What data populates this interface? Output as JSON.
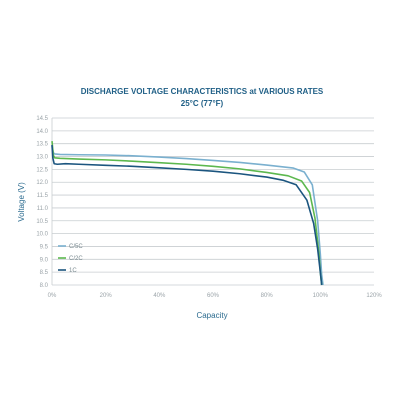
{
  "colors": {
    "title": "#1f5f86",
    "axis_label": "#2b6b8f",
    "grid": "#c8cdd0",
    "series_c5": "#7ab0cf",
    "series_c2": "#5cb84e",
    "series_1c": "#1b557f"
  },
  "chart_data": {
    "type": "line",
    "title": "DISCHARGE VOLTAGE CHARACTERISTICS at VARIOUS RATES",
    "subtitle": "25°C (77°F)",
    "xlabel": "Capacity",
    "ylabel": "Voltage (V)",
    "xlim": [
      0,
      120
    ],
    "ylim": [
      8.0,
      14.5
    ],
    "x_ticks": [
      0,
      20,
      40,
      60,
      80,
      100,
      120
    ],
    "x_tick_labels": [
      "0%",
      "20%",
      "40%",
      "60%",
      "80%",
      "100%",
      "120%"
    ],
    "y_ticks": [
      8.0,
      8.5,
      9.0,
      9.5,
      10.0,
      10.5,
      11.0,
      11.5,
      12.0,
      12.5,
      13.0,
      13.5,
      14.0,
      14.5
    ],
    "y_tick_labels": [
      "8.0",
      "8.5",
      "9.0",
      "9.5",
      "10.0",
      "10.5",
      "11.0",
      "11.5",
      "12.0",
      "12.5",
      "13.0",
      "13.5",
      "14.0",
      "14.5"
    ],
    "grid": true,
    "legend_position": "bottom-left",
    "series": [
      {
        "name": "C/5C",
        "color_key": "series_c5",
        "x": [
          0,
          0.5,
          1,
          3,
          10,
          20,
          30,
          40,
          50,
          60,
          70,
          80,
          90,
          94,
          97,
          99,
          100,
          100.5,
          101
        ],
        "y": [
          13.4,
          13.15,
          13.1,
          13.08,
          13.07,
          13.06,
          13.03,
          12.98,
          12.92,
          12.85,
          12.77,
          12.67,
          12.55,
          12.4,
          11.9,
          10.5,
          9.2,
          8.4,
          8.0
        ]
      },
      {
        "name": "C/2C",
        "color_key": "series_c2",
        "x": [
          0,
          0.5,
          1,
          3,
          10,
          20,
          30,
          40,
          50,
          60,
          70,
          80,
          88,
          93,
          96,
          98,
          99.5,
          100,
          100.5
        ],
        "y": [
          13.6,
          13.05,
          12.95,
          12.93,
          12.9,
          12.87,
          12.82,
          12.76,
          12.7,
          12.62,
          12.52,
          12.38,
          12.25,
          12.05,
          11.6,
          10.6,
          9.2,
          8.5,
          8.0
        ]
      },
      {
        "name": "1C",
        "color_key": "series_1c",
        "x": [
          0,
          0.3,
          0.8,
          2,
          5,
          10,
          20,
          30,
          40,
          50,
          60,
          70,
          80,
          86,
          91,
          95,
          97.5,
          99,
          100,
          100.5
        ],
        "y": [
          13.45,
          12.95,
          12.72,
          12.7,
          12.72,
          12.7,
          12.66,
          12.62,
          12.56,
          12.5,
          12.43,
          12.33,
          12.2,
          12.08,
          11.9,
          11.3,
          10.4,
          9.4,
          8.5,
          8.0
        ]
      }
    ]
  }
}
